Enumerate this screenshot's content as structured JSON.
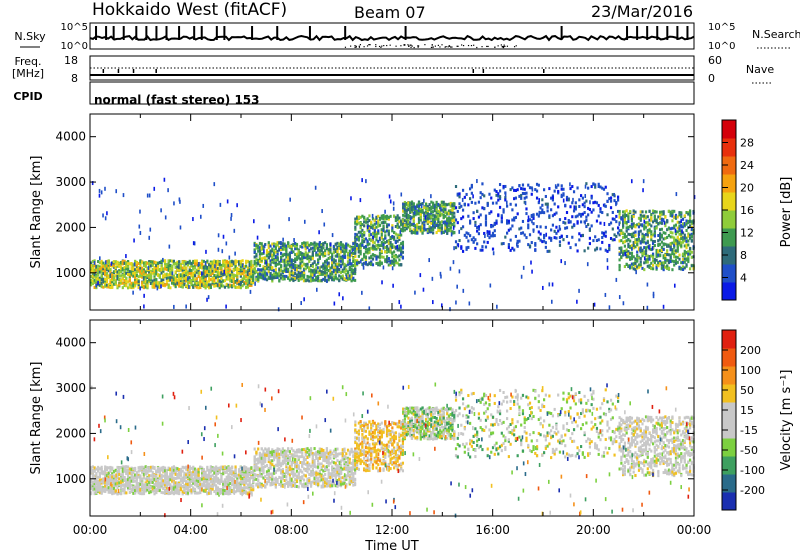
{
  "header": {
    "station": "Hokkaido West (fitACF)",
    "beam": "Beam 07",
    "date": "23/Mar/2016"
  },
  "noise_panel": {
    "left_label": "N.Sky",
    "right_label": "N.Search",
    "ticks": [
      "10^5",
      "10^0"
    ]
  },
  "freq_panel": {
    "left_label_1": "Freq.",
    "left_label_2": "[MHz]",
    "left_ticks": [
      "18",
      "8"
    ],
    "right_label": "Nave",
    "right_ticks": [
      "60",
      "0"
    ]
  },
  "cpid": {
    "label": "CPID",
    "value": "normal (fast stereo) 153"
  },
  "chart_data": [
    {
      "type": "heatmap",
      "title": "",
      "ylabel": "Slant Range [km]",
      "xlabel": "",
      "xlim": [
        0,
        24
      ],
      "ylim": [
        180,
        4500
      ],
      "yticks": [
        "1000",
        "2000",
        "3000",
        "4000"
      ],
      "colorbar": {
        "label": "Power [dB]",
        "ticks": [
          "4",
          "8",
          "12",
          "16",
          "20",
          "24",
          "28"
        ],
        "colors": [
          "#0a1ae6",
          "#1f4fc8",
          "#2e6b7a",
          "#3e9a50",
          "#8fcc3a",
          "#e8d51a",
          "#f5a20f",
          "#f06a10",
          "#e8300c",
          "#d4000a"
        ]
      },
      "echo_bands": [
        {
          "t0": 0.0,
          "t1": 6.5,
          "r0": 700,
          "r1": 1300,
          "level": "high"
        },
        {
          "t0": 6.5,
          "t1": 10.5,
          "r0": 850,
          "r1": 1700,
          "level": "mid"
        },
        {
          "t0": 10.5,
          "t1": 12.4,
          "r0": 1200,
          "r1": 2300,
          "level": "mid"
        },
        {
          "t0": 12.4,
          "t1": 14.5,
          "r0": 1900,
          "r1": 2600,
          "level": "mid"
        },
        {
          "t0": 14.5,
          "t1": 21.0,
          "r0": 1500,
          "r1": 3000,
          "level": "low"
        },
        {
          "t0": 21.0,
          "t1": 24.0,
          "r0": 1100,
          "r1": 2400,
          "level": "mid"
        }
      ]
    },
    {
      "type": "heatmap",
      "title": "",
      "ylabel": "Slant Range [km]",
      "xlabel": "Time UT",
      "xlim": [
        0,
        24
      ],
      "ylim": [
        180,
        4500
      ],
      "yticks": [
        "1000",
        "2000",
        "3000",
        "4000"
      ],
      "xticks": [
        "00:00",
        "04:00",
        "08:00",
        "12:00",
        "16:00",
        "20:00",
        "00:00"
      ],
      "colorbar": {
        "label": "Velocity [m s⁻¹]",
        "ticks": [
          "200",
          "100",
          "50",
          "15",
          "-15",
          "-50",
          "-100",
          "-200"
        ],
        "colors": [
          "#1a2fb0",
          "#2a6b8a",
          "#3ea060",
          "#7cd040",
          "#c8c8c8",
          "#c8c8c8",
          "#f2c020",
          "#f5901a",
          "#f05a10",
          "#e02010"
        ]
      },
      "echo_bands": [
        {
          "t0": 0.0,
          "t1": 6.5,
          "r0": 700,
          "r1": 1300,
          "level": "grey"
        },
        {
          "t0": 6.5,
          "t1": 10.5,
          "r0": 850,
          "r1": 1700,
          "level": "grey"
        },
        {
          "t0": 10.5,
          "t1": 12.4,
          "r0": 1200,
          "r1": 2300,
          "level": "orange"
        },
        {
          "t0": 12.4,
          "t1": 14.5,
          "r0": 1900,
          "r1": 2600,
          "level": "mixed"
        },
        {
          "t0": 14.5,
          "t1": 21.0,
          "r0": 1500,
          "r1": 3000,
          "level": "sparse"
        },
        {
          "t0": 21.0,
          "t1": 24.0,
          "r0": 1100,
          "r1": 2400,
          "level": "grey"
        }
      ]
    }
  ]
}
